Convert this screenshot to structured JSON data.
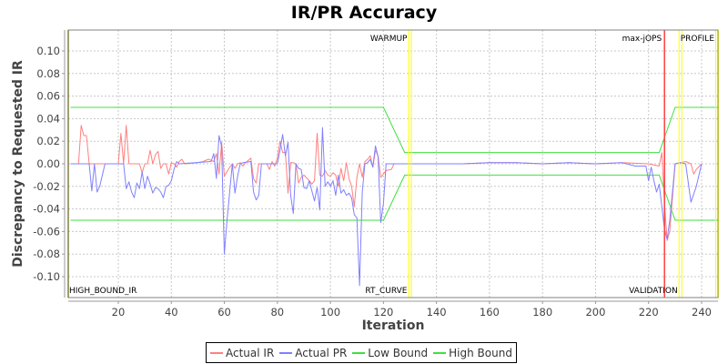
{
  "chart_data": {
    "type": "line",
    "title": "IR/PR Accuracy",
    "xlabel": "Iteration",
    "ylabel": "Discrepancy to Requested IR",
    "xlim": [
      2,
      246
    ],
    "ylim": [
      -0.12,
      0.12
    ],
    "x_ticks": [
      20,
      40,
      60,
      80,
      100,
      120,
      140,
      160,
      180,
      200,
      220,
      240
    ],
    "y_ticks": [
      0.1,
      0.08,
      0.06,
      0.04,
      0.02,
      0.0,
      -0.02,
      -0.04,
      -0.06,
      -0.08,
      -0.1
    ],
    "y_tick_labels": [
      "0.10",
      "0.08",
      "0.06",
      "0.04",
      "0.02",
      "0.00",
      "-0.02",
      "-0.04",
      "-0.06",
      "-0.08",
      "-0.10"
    ],
    "grid": true,
    "legend_position": "bottom",
    "series": [
      {
        "name": "Actual IR",
        "color": "#ff8080",
        "points": [
          [
            2,
            0
          ],
          [
            5,
            0
          ],
          [
            6,
            0.034
          ],
          [
            7,
            0.025
          ],
          [
            8,
            0.025
          ],
          [
            9,
            0
          ],
          [
            20,
            0
          ],
          [
            21,
            0.027
          ],
          [
            22,
            0
          ],
          [
            23,
            0.034
          ],
          [
            24,
            0
          ],
          [
            28,
            0
          ],
          [
            29,
            -0.008
          ],
          [
            30,
            0
          ],
          [
            31,
            0
          ],
          [
            32,
            0.012
          ],
          [
            33,
            0
          ],
          [
            34,
            0.008
          ],
          [
            35,
            0.011
          ],
          [
            36,
            -0.004
          ],
          [
            37,
            0
          ],
          [
            38,
            0
          ],
          [
            39,
            -0.009
          ],
          [
            40,
            0.001
          ],
          [
            41,
            0
          ],
          [
            42,
            -0.003
          ],
          [
            43,
            0.002
          ],
          [
            44,
            0.004
          ],
          [
            45,
            0
          ],
          [
            50,
            0.001
          ],
          [
            52,
            0.002
          ],
          [
            54,
            0.004
          ],
          [
            55,
            0.003
          ],
          [
            56,
            0.002
          ],
          [
            57,
            0.009
          ],
          [
            58,
            -0.009
          ],
          [
            59,
            0.019
          ],
          [
            60,
            -0.011
          ],
          [
            62,
            -0.003
          ],
          [
            63,
            0
          ],
          [
            64,
            -0.004
          ],
          [
            65,
            0
          ],
          [
            66,
            0.001
          ],
          [
            67,
            -0.002
          ],
          [
            68,
            0.001
          ],
          [
            70,
            0.005
          ],
          [
            71,
            -0.013
          ],
          [
            72,
            -0.017
          ],
          [
            73,
            0
          ],
          [
            76,
            0
          ],
          [
            77,
            -0.005
          ],
          [
            78,
            0.002
          ],
          [
            79,
            -0.002
          ],
          [
            80,
            0.005
          ],
          [
            81,
            0.02
          ],
          [
            82,
            0.01
          ],
          [
            83,
            0.01
          ],
          [
            84,
            -0.026
          ],
          [
            85,
            0.001
          ],
          [
            86,
            0.001
          ],
          [
            87,
            0
          ],
          [
            88,
            -0.017
          ],
          [
            89,
            -0.012
          ],
          [
            90,
            -0.01
          ],
          [
            92,
            -0.015
          ],
          [
            93,
            -0.018
          ],
          [
            94,
            -0.015
          ],
          [
            95,
            0.027
          ],
          [
            96,
            -0.01
          ],
          [
            97,
            -0.011
          ],
          [
            98,
            -0.006
          ],
          [
            99,
            -0.01
          ],
          [
            100,
            -0.011
          ],
          [
            101,
            -0.008
          ],
          [
            102,
            -0.01
          ],
          [
            103,
            -0.02
          ],
          [
            104,
            -0.004
          ],
          [
            105,
            -0.015
          ],
          [
            106,
            0.001
          ],
          [
            107,
            -0.013
          ],
          [
            108,
            -0.02
          ],
          [
            109,
            -0.038
          ],
          [
            110,
            -0.012
          ],
          [
            111,
            0
          ],
          [
            112,
            -0.012
          ],
          [
            113,
            0.002
          ],
          [
            114,
            0.004
          ],
          [
            115,
            0.007
          ],
          [
            116,
            -0.003
          ],
          [
            117,
            0.012
          ],
          [
            118,
            0.007
          ],
          [
            119,
            -0.012
          ],
          [
            121,
            -0.006
          ],
          [
            123,
            -0.005
          ],
          [
            124,
            0
          ],
          [
            130,
            0
          ],
          [
            150,
            0
          ],
          [
            160,
            0.001
          ],
          [
            170,
            0.001
          ],
          [
            180,
            0
          ],
          [
            190,
            0.001
          ],
          [
            200,
            0
          ],
          [
            210,
            0.001
          ],
          [
            220,
            0
          ],
          [
            224,
            -0.002
          ],
          [
            225,
            0.01
          ],
          [
            226,
            -0.035
          ],
          [
            227,
            -0.068
          ],
          [
            228,
            -0.06
          ],
          [
            230,
            0
          ],
          [
            232,
            0.001
          ],
          [
            234,
            0.002
          ],
          [
            236,
            0
          ],
          [
            237,
            -0.009
          ],
          [
            238,
            -0.005
          ],
          [
            240,
            0
          ]
        ]
      },
      {
        "name": "Actual PR",
        "color": "#8080ff",
        "points": [
          [
            2,
            0
          ],
          [
            9,
            0
          ],
          [
            10,
            -0.024
          ],
          [
            11,
            0
          ],
          [
            12,
            -0.025
          ],
          [
            13,
            -0.02
          ],
          [
            14,
            -0.01
          ],
          [
            15,
            0
          ],
          [
            22,
            0
          ],
          [
            23,
            -0.022
          ],
          [
            24,
            -0.016
          ],
          [
            25,
            -0.025
          ],
          [
            26,
            -0.03
          ],
          [
            27,
            -0.017
          ],
          [
            28,
            -0.022
          ],
          [
            29,
            -0.007
          ],
          [
            30,
            -0.022
          ],
          [
            31,
            -0.011
          ],
          [
            32,
            -0.018
          ],
          [
            33,
            -0.026
          ],
          [
            34,
            -0.021
          ],
          [
            35,
            -0.022
          ],
          [
            36,
            -0.025
          ],
          [
            37,
            -0.03
          ],
          [
            38,
            -0.02
          ],
          [
            39,
            -0.019
          ],
          [
            40,
            -0.015
          ],
          [
            41,
            -0.005
          ],
          [
            42,
            0.002
          ],
          [
            43,
            0
          ],
          [
            55,
            0.002
          ],
          [
            56,
            0.009
          ],
          [
            57,
            -0.013
          ],
          [
            58,
            0.025
          ],
          [
            59,
            0.015
          ],
          [
            60,
            -0.08
          ],
          [
            61,
            -0.05
          ],
          [
            62,
            -0.025
          ],
          [
            63,
            0
          ],
          [
            64,
            -0.026
          ],
          [
            65,
            -0.011
          ],
          [
            66,
            0
          ],
          [
            67,
            0.001
          ],
          [
            70,
            0.002
          ],
          [
            71,
            -0.025
          ],
          [
            72,
            -0.032
          ],
          [
            73,
            -0.028
          ],
          [
            74,
            0
          ],
          [
            80,
            0
          ],
          [
            81,
            0.012
          ],
          [
            82,
            0.026
          ],
          [
            83,
            0.007
          ],
          [
            84,
            0.019
          ],
          [
            85,
            -0.028
          ],
          [
            86,
            -0.044
          ],
          [
            87,
            0
          ],
          [
            88,
            -0.004
          ],
          [
            89,
            -0.005
          ],
          [
            90,
            -0.021
          ],
          [
            91,
            -0.022
          ],
          [
            92,
            -0.015
          ],
          [
            93,
            -0.024
          ],
          [
            94,
            -0.033
          ],
          [
            95,
            -0.021
          ],
          [
            96,
            -0.041
          ],
          [
            97,
            0.032
          ],
          [
            98,
            -0.02
          ],
          [
            99,
            -0.016
          ],
          [
            100,
            -0.02
          ],
          [
            101,
            -0.015
          ],
          [
            102,
            -0.028
          ],
          [
            103,
            -0.01
          ],
          [
            104,
            -0.026
          ],
          [
            105,
            -0.023
          ],
          [
            106,
            -0.028
          ],
          [
            107,
            -0.026
          ],
          [
            108,
            -0.03
          ],
          [
            109,
            -0.045
          ],
          [
            110,
            -0.048
          ],
          [
            111,
            -0.108
          ],
          [
            112,
            -0.025
          ],
          [
            113,
            0
          ],
          [
            114,
            0.001
          ],
          [
            115,
            0.004
          ],
          [
            116,
            -0.003
          ],
          [
            117,
            0.016
          ],
          [
            118,
            0.006
          ],
          [
            119,
            -0.052
          ],
          [
            120,
            -0.035
          ],
          [
            121,
            0
          ],
          [
            130,
            0
          ],
          [
            150,
            0
          ],
          [
            160,
            0.001
          ],
          [
            170,
            0.001
          ],
          [
            180,
            0
          ],
          [
            190,
            0.001
          ],
          [
            200,
            0
          ],
          [
            210,
            0.001
          ],
          [
            215,
            -0.002
          ],
          [
            219,
            -0.002
          ],
          [
            220,
            -0.015
          ],
          [
            221,
            -0.003
          ],
          [
            222,
            -0.015
          ],
          [
            223,
            -0.025
          ],
          [
            224,
            -0.018
          ],
          [
            225,
            -0.038
          ],
          [
            226,
            -0.058
          ],
          [
            227,
            -0.067
          ],
          [
            228,
            -0.05
          ],
          [
            230,
            0
          ],
          [
            232,
            0.001
          ],
          [
            234,
            0
          ],
          [
            236,
            -0.034
          ],
          [
            238,
            -0.02
          ],
          [
            240,
            0
          ]
        ]
      },
      {
        "name": "Low Bound",
        "color": "#40e040",
        "points": [
          [
            2,
            -0.05
          ],
          [
            120,
            -0.05
          ],
          [
            128,
            -0.01
          ],
          [
            222,
            -0.01
          ],
          [
            224,
            -0.01
          ],
          [
            230,
            -0.05
          ],
          [
            246,
            -0.05
          ]
        ]
      },
      {
        "name": "High Bound",
        "color": "#40e040",
        "points": [
          [
            2,
            0.05
          ],
          [
            120,
            0.05
          ],
          [
            128,
            0.01
          ],
          [
            224,
            0.01
          ],
          [
            230,
            0.05
          ],
          [
            246,
            0.05
          ]
        ]
      }
    ],
    "markers": [
      {
        "label": "WARMUP",
        "x": 130,
        "color": "#ffff00",
        "label_pos": "top"
      },
      {
        "label": "RT_CURVE",
        "x": 130,
        "color": "#ffff00",
        "label_pos": "bottom"
      },
      {
        "label": "max-jOPS",
        "x": 226,
        "color": "#ff4040",
        "label_pos": "top"
      },
      {
        "label": "VALIDATION",
        "x": 232,
        "color": "#ffff00",
        "label_pos": "bottom"
      },
      {
        "label": "PROFILE",
        "x": 246,
        "color": "#ffff00",
        "label_pos": "top"
      },
      {
        "label": "HIGH_BOUND_IR",
        "x": 2,
        "color": "#808040",
        "label_pos": "bottom"
      }
    ]
  },
  "legend": {
    "items": [
      {
        "label": "Actual IR",
        "color": "#ff8080"
      },
      {
        "label": "Actual PR",
        "color": "#8080ff"
      },
      {
        "label": "Low Bound",
        "color": "#40e040"
      },
      {
        "label": "High Bound",
        "color": "#40e040"
      }
    ]
  }
}
